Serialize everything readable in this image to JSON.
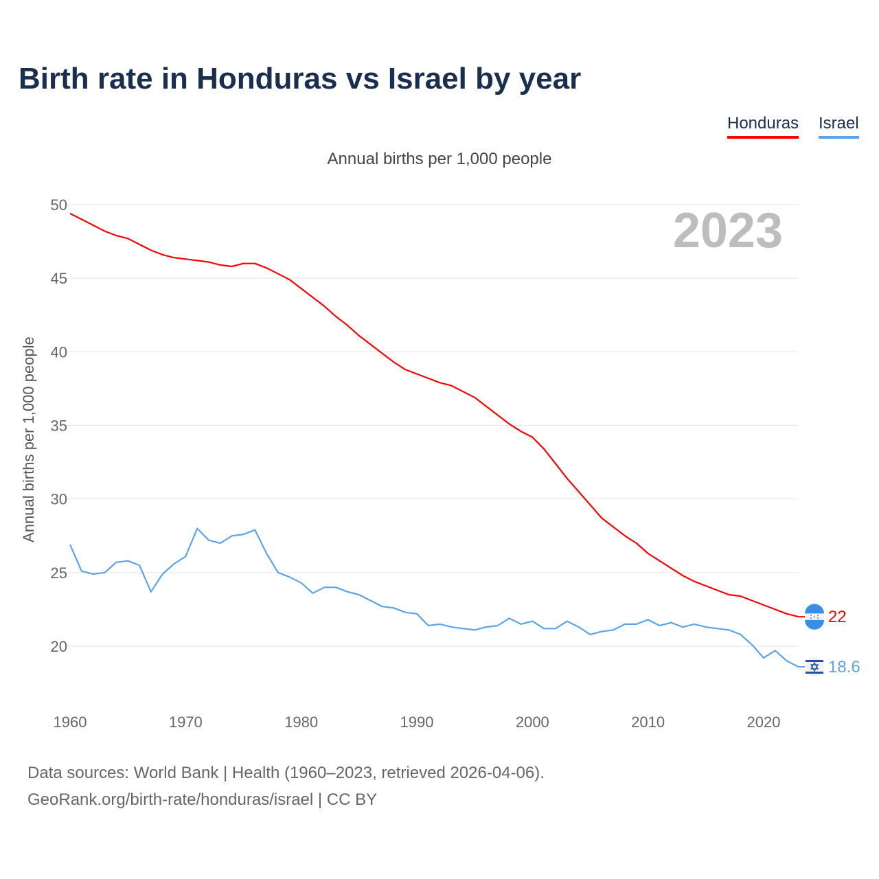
{
  "chart_data": {
    "type": "line",
    "title": "Birth rate in Honduras vs Israel by year",
    "subtitle": "Annual births per 1,000 people",
    "ylabel": "Annual births per 1,000 people",
    "xlabel": "",
    "year_label": "2023",
    "xlim": [
      1960,
      2023
    ],
    "ylim": [
      20,
      50
    ],
    "yticks": [
      20,
      25,
      30,
      35,
      40,
      45,
      50
    ],
    "xticks": [
      1960,
      1970,
      1980,
      1990,
      2000,
      2010,
      2020
    ],
    "grid": true,
    "legend_placement": "top-right",
    "x": [
      1960,
      1961,
      1962,
      1963,
      1964,
      1965,
      1966,
      1967,
      1968,
      1969,
      1970,
      1971,
      1972,
      1973,
      1974,
      1975,
      1976,
      1977,
      1978,
      1979,
      1980,
      1981,
      1982,
      1983,
      1984,
      1985,
      1986,
      1987,
      1988,
      1989,
      1990,
      1991,
      1992,
      1993,
      1994,
      1995,
      1996,
      1997,
      1998,
      1999,
      2000,
      2001,
      2002,
      2003,
      2004,
      2005,
      2006,
      2007,
      2008,
      2009,
      2010,
      2011,
      2012,
      2013,
      2014,
      2015,
      2016,
      2017,
      2018,
      2019,
      2020,
      2021,
      2022,
      2023
    ],
    "series": [
      {
        "name": "Honduras",
        "color": "#ff0000",
        "end_label": "22",
        "values": [
          49.4,
          49.0,
          48.6,
          48.2,
          47.9,
          47.7,
          47.3,
          46.9,
          46.6,
          46.4,
          46.3,
          46.2,
          46.1,
          45.9,
          45.8,
          46.0,
          46.0,
          45.7,
          45.3,
          44.9,
          44.3,
          43.7,
          43.1,
          42.4,
          41.8,
          41.1,
          40.5,
          39.9,
          39.3,
          38.8,
          38.5,
          38.2,
          37.9,
          37.7,
          37.3,
          36.9,
          36.3,
          35.7,
          35.1,
          34.6,
          34.2,
          33.4,
          32.4,
          31.4,
          30.5,
          29.6,
          28.7,
          28.1,
          27.5,
          27.0,
          26.3,
          25.8,
          25.3,
          24.8,
          24.4,
          24.1,
          23.8,
          23.5,
          23.4,
          23.1,
          22.8,
          22.5,
          22.2,
          22.0
        ]
      },
      {
        "name": "Israel",
        "color": "#5ba4ec",
        "end_label": "18.6",
        "values": [
          26.9,
          25.1,
          24.9,
          25.0,
          25.7,
          25.8,
          25.5,
          23.7,
          24.9,
          25.6,
          26.1,
          28.0,
          27.2,
          27.0,
          27.5,
          27.6,
          27.9,
          26.3,
          25.0,
          24.7,
          24.3,
          23.6,
          24.0,
          24.0,
          23.7,
          23.5,
          23.1,
          22.7,
          22.6,
          22.3,
          22.2,
          21.4,
          21.5,
          21.3,
          21.2,
          21.1,
          21.3,
          21.4,
          21.9,
          21.5,
          21.7,
          21.2,
          21.2,
          21.7,
          21.3,
          20.8,
          21.0,
          21.1,
          21.5,
          21.5,
          21.8,
          21.4,
          21.6,
          21.3,
          21.5,
          21.3,
          21.2,
          21.1,
          20.8,
          20.1,
          19.2,
          19.7,
          19.0,
          18.6
        ]
      }
    ]
  },
  "source": {
    "line1": "Data sources: World Bank | Health (1960–2023, retrieved 2026-04-06).",
    "line2": "GeoRank.org/birth-rate/honduras/israel | CC BY"
  }
}
